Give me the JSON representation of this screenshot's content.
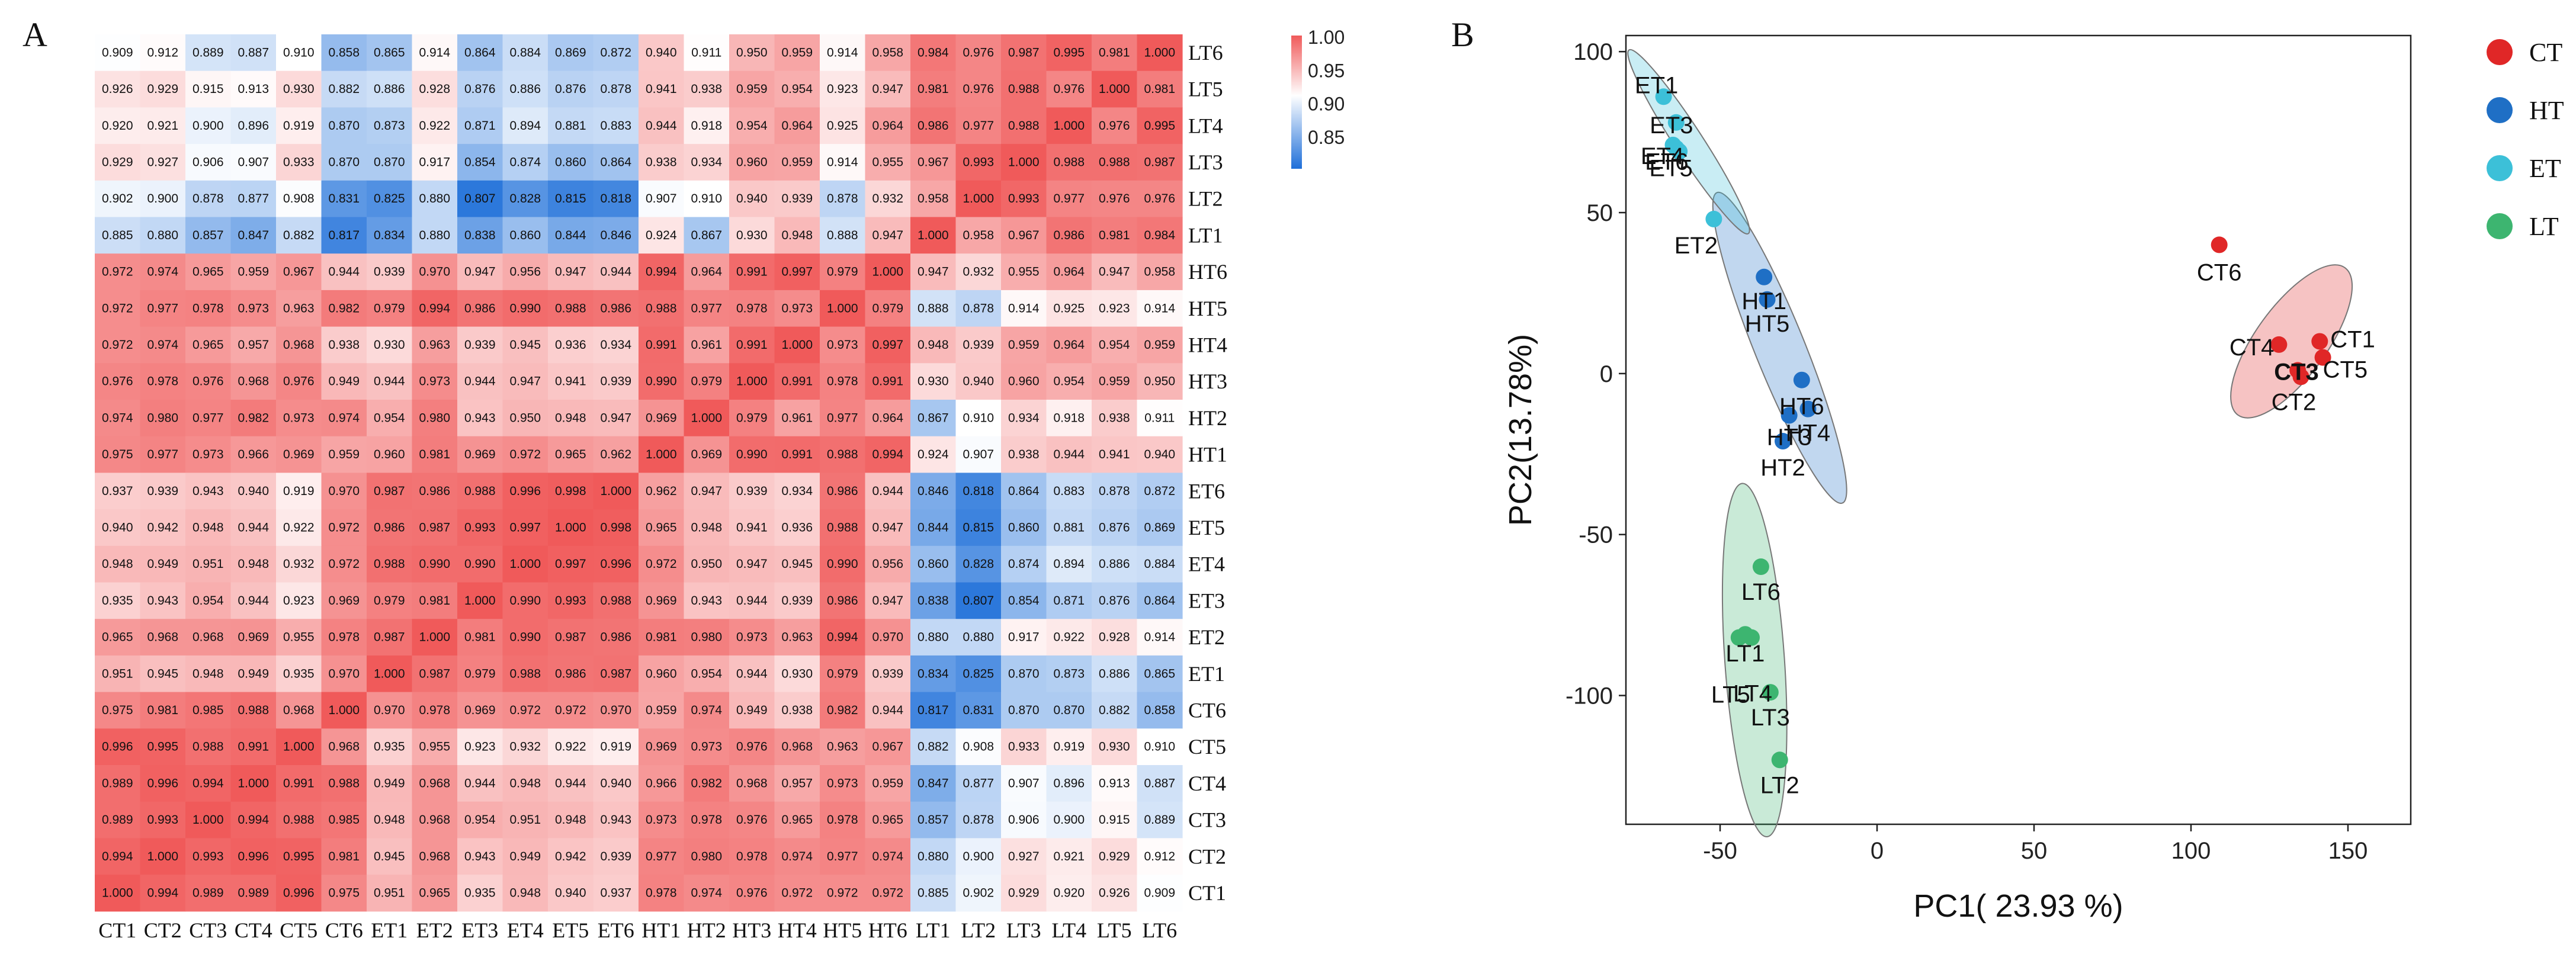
{
  "panels": {
    "a": "A",
    "b": "B"
  },
  "colors": {
    "low": "#1e6fd9",
    "mid": "#ffffff",
    "high": "#f05a5a",
    "CT": "#e02727",
    "HT": "#1f6fc5",
    "ET": "#3cc0d8",
    "LT": "#3db570"
  },
  "chart_data": [
    {
      "type": "heatmap",
      "title": "",
      "samples": [
        "CT1",
        "CT2",
        "CT3",
        "CT4",
        "CT5",
        "CT6",
        "ET1",
        "ET2",
        "ET3",
        "ET4",
        "ET5",
        "ET6",
        "HT1",
        "HT2",
        "HT3",
        "HT4",
        "HT5",
        "HT6",
        "LT1",
        "LT2",
        "LT3",
        "LT4",
        "LT5",
        "LT6"
      ],
      "row_labels": [
        "LT6",
        "LT5",
        "LT4",
        "LT3",
        "LT2",
        "LT1",
        "HT6",
        "HT5",
        "HT4",
        "HT3",
        "HT2",
        "HT1",
        "ET6",
        "ET5",
        "ET4",
        "ET3",
        "ET2",
        "ET1",
        "CT6",
        "CT5",
        "CT4",
        "CT3",
        "CT2",
        "CT1"
      ],
      "values": [
        [
          "0.909",
          "0.912",
          "0.889",
          "0.887",
          "0.910",
          "0.858",
          "0.865",
          "0.914",
          "0.864",
          "0.884",
          "0.869",
          "0.872",
          "0.940",
          "0.911",
          "0.950",
          "0.959",
          "0.914",
          "0.958",
          "0.984",
          "0.976",
          "0.987",
          "0.995",
          "0.981",
          "1.000"
        ],
        [
          "0.926",
          "0.929",
          "0.915",
          "0.913",
          "0.930",
          "0.882",
          "0.886",
          "0.928",
          "0.876",
          "0.886",
          "0.876",
          "0.878",
          "0.941",
          "0.938",
          "0.959",
          "0.954",
          "0.923",
          "0.947",
          "0.981",
          "0.976",
          "0.988",
          "0.976",
          "1.000",
          "0.981"
        ],
        [
          "0.920",
          "0.921",
          "0.900",
          "0.896",
          "0.919",
          "0.870",
          "0.873",
          "0.922",
          "0.871",
          "0.894",
          "0.881",
          "0.883",
          "0.944",
          "0.918",
          "0.954",
          "0.964",
          "0.925",
          "0.964",
          "0.986",
          "0.977",
          "0.988",
          "1.000",
          "0.976",
          "0.995"
        ],
        [
          "0.929",
          "0.927",
          "0.906",
          "0.907",
          "0.933",
          "0.870",
          "0.870",
          "0.917",
          "0.854",
          "0.874",
          "0.860",
          "0.864",
          "0.938",
          "0.934",
          "0.960",
          "0.959",
          "0.914",
          "0.955",
          "0.967",
          "0.993",
          "1.000",
          "0.988",
          "0.988",
          "0.987"
        ],
        [
          "0.902",
          "0.900",
          "0.878",
          "0.877",
          "0.908",
          "0.831",
          "0.825",
          "0.880",
          "0.807",
          "0.828",
          "0.815",
          "0.818",
          "0.907",
          "0.910",
          "0.940",
          "0.939",
          "0.878",
          "0.932",
          "0.958",
          "1.000",
          "0.993",
          "0.977",
          "0.976",
          "0.976"
        ],
        [
          "0.885",
          "0.880",
          "0.857",
          "0.847",
          "0.882",
          "0.817",
          "0.834",
          "0.880",
          "0.838",
          "0.860",
          "0.844",
          "0.846",
          "0.924",
          "0.867",
          "0.930",
          "0.948",
          "0.888",
          "0.947",
          "1.000",
          "0.958",
          "0.967",
          "0.986",
          "0.981",
          "0.984"
        ],
        [
          "0.972",
          "0.974",
          "0.965",
          "0.959",
          "0.967",
          "0.944",
          "0.939",
          "0.970",
          "0.947",
          "0.956",
          "0.947",
          "0.944",
          "0.994",
          "0.964",
          "0.991",
          "0.997",
          "0.979",
          "1.000",
          "0.947",
          "0.932",
          "0.955",
          "0.964",
          "0.947",
          "0.958"
        ],
        [
          "0.972",
          "0.977",
          "0.978",
          "0.973",
          "0.963",
          "0.982",
          "0.979",
          "0.994",
          "0.986",
          "0.990",
          "0.988",
          "0.986",
          "0.988",
          "0.977",
          "0.978",
          "0.973",
          "1.000",
          "0.979",
          "0.888",
          "0.878",
          "0.914",
          "0.925",
          "0.923",
          "0.914"
        ],
        [
          "0.972",
          "0.974",
          "0.965",
          "0.957",
          "0.968",
          "0.938",
          "0.930",
          "0.963",
          "0.939",
          "0.945",
          "0.936",
          "0.934",
          "0.991",
          "0.961",
          "0.991",
          "1.000",
          "0.973",
          "0.997",
          "0.948",
          "0.939",
          "0.959",
          "0.964",
          "0.954",
          "0.959"
        ],
        [
          "0.976",
          "0.978",
          "0.976",
          "0.968",
          "0.976",
          "0.949",
          "0.944",
          "0.973",
          "0.944",
          "0.947",
          "0.941",
          "0.939",
          "0.990",
          "0.979",
          "1.000",
          "0.991",
          "0.978",
          "0.991",
          "0.930",
          "0.940",
          "0.960",
          "0.954",
          "0.959",
          "0.950"
        ],
        [
          "0.974",
          "0.980",
          "0.977",
          "0.982",
          "0.973",
          "0.974",
          "0.954",
          "0.980",
          "0.943",
          "0.950",
          "0.948",
          "0.947",
          "0.969",
          "1.000",
          "0.979",
          "0.961",
          "0.977",
          "0.964",
          "0.867",
          "0.910",
          "0.934",
          "0.918",
          "0.938",
          "0.911"
        ],
        [
          "0.975",
          "0.977",
          "0.973",
          "0.966",
          "0.969",
          "0.959",
          "0.960",
          "0.981",
          "0.969",
          "0.972",
          "0.965",
          "0.962",
          "1.000",
          "0.969",
          "0.990",
          "0.991",
          "0.988",
          "0.994",
          "0.924",
          "0.907",
          "0.938",
          "0.944",
          "0.941",
          "0.940"
        ],
        [
          "0.937",
          "0.939",
          "0.943",
          "0.940",
          "0.919",
          "0.970",
          "0.987",
          "0.986",
          "0.988",
          "0.996",
          "0.998",
          "1.000",
          "0.962",
          "0.947",
          "0.939",
          "0.934",
          "0.986",
          "0.944",
          "0.846",
          "0.818",
          "0.864",
          "0.883",
          "0.878",
          "0.872"
        ],
        [
          "0.940",
          "0.942",
          "0.948",
          "0.944",
          "0.922",
          "0.972",
          "0.986",
          "0.987",
          "0.993",
          "0.997",
          "1.000",
          "0.998",
          "0.965",
          "0.948",
          "0.941",
          "0.936",
          "0.988",
          "0.947",
          "0.844",
          "0.815",
          "0.860",
          "0.881",
          "0.876",
          "0.869"
        ],
        [
          "0.948",
          "0.949",
          "0.951",
          "0.948",
          "0.932",
          "0.972",
          "0.988",
          "0.990",
          "0.990",
          "1.000",
          "0.997",
          "0.996",
          "0.972",
          "0.950",
          "0.947",
          "0.945",
          "0.990",
          "0.956",
          "0.860",
          "0.828",
          "0.874",
          "0.894",
          "0.886",
          "0.884"
        ],
        [
          "0.935",
          "0.943",
          "0.954",
          "0.944",
          "0.923",
          "0.969",
          "0.979",
          "0.981",
          "1.000",
          "0.990",
          "0.993",
          "0.988",
          "0.969",
          "0.943",
          "0.944",
          "0.939",
          "0.986",
          "0.947",
          "0.838",
          "0.807",
          "0.854",
          "0.871",
          "0.876",
          "0.864"
        ],
        [
          "0.965",
          "0.968",
          "0.968",
          "0.969",
          "0.955",
          "0.978",
          "0.987",
          "1.000",
          "0.981",
          "0.990",
          "0.987",
          "0.986",
          "0.981",
          "0.980",
          "0.973",
          "0.963",
          "0.994",
          "0.970",
          "0.880",
          "0.880",
          "0.917",
          "0.922",
          "0.928",
          "0.914"
        ],
        [
          "0.951",
          "0.945",
          "0.948",
          "0.949",
          "0.935",
          "0.970",
          "1.000",
          "0.987",
          "0.979",
          "0.988",
          "0.986",
          "0.987",
          "0.960",
          "0.954",
          "0.944",
          "0.930",
          "0.979",
          "0.939",
          "0.834",
          "0.825",
          "0.870",
          "0.873",
          "0.886",
          "0.865"
        ],
        [
          "0.975",
          "0.981",
          "0.985",
          "0.988",
          "0.968",
          "1.000",
          "0.970",
          "0.978",
          "0.969",
          "0.972",
          "0.972",
          "0.970",
          "0.959",
          "0.974",
          "0.949",
          "0.938",
          "0.982",
          "0.944",
          "0.817",
          "0.831",
          "0.870",
          "0.870",
          "0.882",
          "0.858"
        ],
        [
          "0.996",
          "0.995",
          "0.988",
          "0.991",
          "1.000",
          "0.968",
          "0.935",
          "0.955",
          "0.923",
          "0.932",
          "0.922",
          "0.919",
          "0.969",
          "0.973",
          "0.976",
          "0.968",
          "0.963",
          "0.967",
          "0.882",
          "0.908",
          "0.933",
          "0.919",
          "0.930",
          "0.910"
        ],
        [
          "0.989",
          "0.996",
          "0.994",
          "1.000",
          "0.991",
          "0.988",
          "0.949",
          "0.968",
          "0.944",
          "0.948",
          "0.944",
          "0.940",
          "0.966",
          "0.982",
          "0.968",
          "0.957",
          "0.973",
          "0.959",
          "0.847",
          "0.877",
          "0.907",
          "0.896",
          "0.913",
          "0.887"
        ],
        [
          "0.989",
          "0.993",
          "1.000",
          "0.994",
          "0.988",
          "0.985",
          "0.948",
          "0.968",
          "0.954",
          "0.951",
          "0.948",
          "0.943",
          "0.973",
          "0.978",
          "0.976",
          "0.965",
          "0.978",
          "0.965",
          "0.857",
          "0.878",
          "0.906",
          "0.900",
          "0.915",
          "0.889"
        ],
        [
          "0.994",
          "1.000",
          "0.993",
          "0.996",
          "0.995",
          "0.981",
          "0.945",
          "0.968",
          "0.943",
          "0.949",
          "0.942",
          "0.939",
          "0.977",
          "0.980",
          "0.978",
          "0.974",
          "0.977",
          "0.974",
          "0.880",
          "0.900",
          "0.927",
          "0.921",
          "0.929",
          "0.912"
        ],
        [
          "1.000",
          "0.994",
          "0.989",
          "0.989",
          "0.996",
          "0.975",
          "0.951",
          "0.965",
          "0.935",
          "0.948",
          "0.940",
          "0.937",
          "0.978",
          "0.974",
          "0.976",
          "0.972",
          "0.972",
          "0.972",
          "0.885",
          "0.902",
          "0.929",
          "0.920",
          "0.926",
          "0.909"
        ]
      ],
      "colorbar": {
        "min": 0.8,
        "max": 1.0,
        "ticks": [
          "1.00",
          "0.95",
          "0.90",
          "0.85"
        ]
      }
    },
    {
      "type": "scatter",
      "xlabel": "PC1( 23.93 %)",
      "ylabel": "PC2(13.78%)",
      "xlim": [
        -80,
        170
      ],
      "ylim": [
        -140,
        105
      ],
      "xticks": [
        "-50",
        "0",
        "50",
        "100",
        "150"
      ],
      "yticks": [
        "100",
        "50",
        "0",
        "-50",
        "-100"
      ],
      "legend": {
        "position": "top-right",
        "entries": [
          "CT",
          "HT",
          "ET",
          "LT"
        ]
      },
      "groups": [
        {
          "name": "CT",
          "points": [
            {
              "label": "CT6",
              "x": 109,
              "y": 40
            },
            {
              "label": "CT4",
              "x": 128,
              "y": 9
            },
            {
              "label": "CT1",
              "x": 141,
              "y": 10
            },
            {
              "label": "CT5",
              "x": 142,
              "y": 5
            },
            {
              "label": "CT3",
              "x": 134,
              "y": 1
            },
            {
              "label": "CT2",
              "x": 135,
              "y": -1
            }
          ],
          "ellipse": {
            "cx": 132,
            "cy": 10,
            "rx": 29,
            "ry": 11,
            "angle": -54
          }
        },
        {
          "name": "HT",
          "points": [
            {
              "label": "HT1",
              "x": -36,
              "y": 30
            },
            {
              "label": "HT5",
              "x": -35,
              "y": 23
            },
            {
              "label": "HT6",
              "x": -24,
              "y": -2
            },
            {
              "label": "HT4",
              "x": -22,
              "y": -11
            },
            {
              "label": "HT3",
              "x": -28,
              "y": -13
            },
            {
              "label": "HT2",
              "x": -30,
              "y": -21
            }
          ],
          "ellipse": {
            "cx": -31,
            "cy": 8,
            "rx": 8,
            "ry": 52,
            "angle": -22
          }
        },
        {
          "name": "ET",
          "points": [
            {
              "label": "ET1",
              "x": -68,
              "y": 86
            },
            {
              "label": "ET3",
              "x": -64,
              "y": 78
            },
            {
              "label": "ET4",
              "x": -65,
              "y": 71
            },
            {
              "label": "ET6",
              "x": -64,
              "y": 70
            },
            {
              "label": "ET5",
              "x": -63,
              "y": 69
            },
            {
              "label": "ET2",
              "x": -52,
              "y": 48
            }
          ],
          "ellipse": {
            "cx": -60,
            "cy": 72,
            "rx": 4.5,
            "ry": 34,
            "angle": -33
          }
        },
        {
          "name": "LT",
          "points": [
            {
              "label": "LT6",
              "x": -37,
              "y": -60
            },
            {
              "label": "LT1",
              "x": -42,
              "y": -81
            },
            {
              "label": "LT5",
              "x": -44,
              "y": -82
            },
            {
              "label": "LT4",
              "x": -40,
              "y": -82
            },
            {
              "label": "LT3",
              "x": -34,
              "y": -99
            },
            {
              "label": "LT2",
              "x": -31,
              "y": -120
            }
          ],
          "ellipse": {
            "cx": -39,
            "cy": -89,
            "rx": 9.5,
            "ry": 55,
            "angle": -4
          }
        }
      ]
    }
  ]
}
